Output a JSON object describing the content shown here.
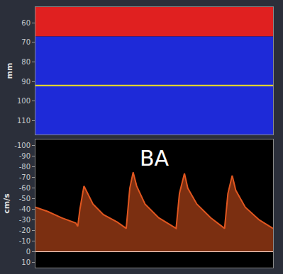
{
  "chart_data": [
    {
      "type": "bands",
      "ylabel": "mm",
      "xlim": [
        0,
        100
      ],
      "ylim": [
        117,
        52
      ],
      "yticks": [
        60,
        70,
        80,
        90,
        100,
        110
      ],
      "tick_labels": "y",
      "bands": [
        {
          "from": 52,
          "to": 67,
          "color": "#e02020"
        },
        {
          "from": 67,
          "to": 117,
          "color": "#1e2ad8"
        }
      ],
      "gate": {
        "value": 92,
        "color": "#f0e020"
      }
    },
    {
      "type": "area",
      "title": "BA",
      "ylabel": "cm/s",
      "xlim": [
        0,
        100
      ],
      "ylim": [
        15,
        -106
      ],
      "yticks": [
        -100,
        -90,
        -80,
        -70,
        -60,
        -50,
        -40,
        -30,
        -20,
        -10,
        0,
        10
      ],
      "tick_labels": "y",
      "color": "#e0561f",
      "x": [
        0,
        5.2,
        11,
        17,
        17.8,
        18.7,
        20.4,
        21.3,
        24.2,
        28.6,
        34.4,
        38.2,
        39.7,
        41.1,
        42.6,
        46.1,
        51.9,
        59.2,
        60.6,
        62.7,
        64.1,
        67.9,
        73.8,
        79.6,
        81,
        82.8,
        84.3,
        88.3,
        94.2,
        100
      ],
      "values": [
        -42,
        -38,
        -32,
        -27,
        -24,
        -40,
        -62,
        -58,
        -45,
        -35,
        -28,
        -22,
        -60,
        -75,
        -62,
        -45,
        -32,
        -22,
        -55,
        -74,
        -60,
        -45,
        -32,
        -22,
        -55,
        -72,
        -58,
        -42,
        -30,
        -22
      ]
    }
  ]
}
